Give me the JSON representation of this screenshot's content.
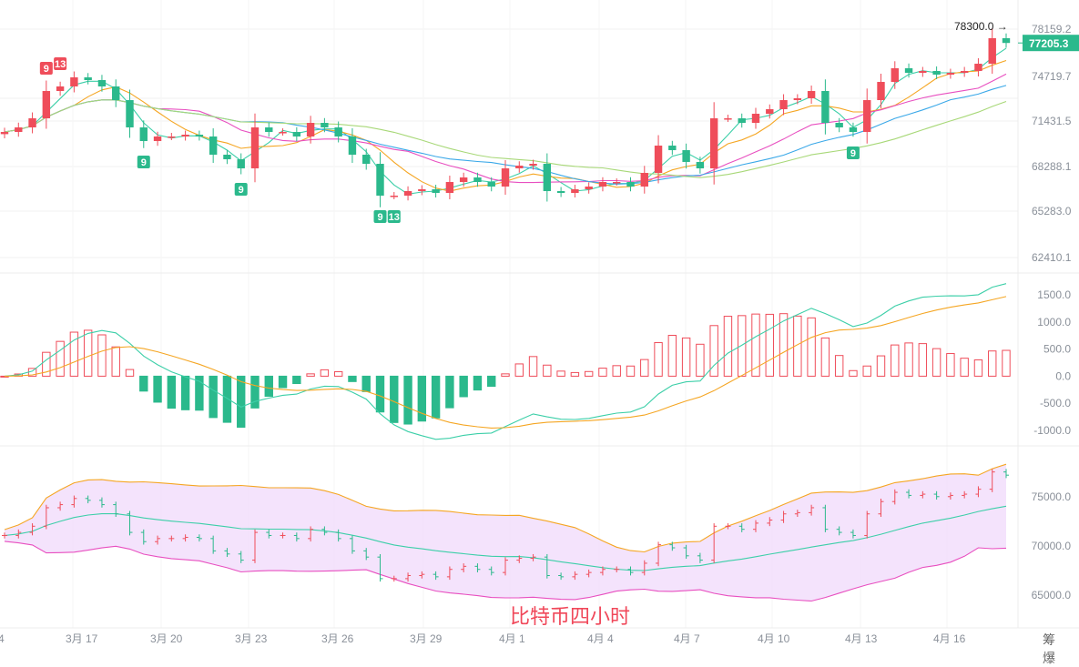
{
  "chart_data": {
    "type": "candlestick",
    "title": "",
    "watermark": "比特币四小时",
    "price_axis_ticks": [
      "78159.2",
      "74719.7",
      "71431.5",
      "68288.1",
      "65283.0",
      "62410.1"
    ],
    "price_axis_range": [
      62410.1,
      78159.2
    ],
    "last_price_label": "77205.3",
    "high_marker_label": "78300.0",
    "macd_axis_ticks": [
      "1500.0",
      "1000.0",
      "500.0",
      "0.0",
      "-500.0",
      "-1000.0"
    ],
    "macd_axis_range": [
      -1000,
      1500
    ],
    "boll_axis_ticks": [
      "75000.0",
      "70000.0",
      "65000.0"
    ],
    "boll_axis_range": [
      65000,
      75000
    ],
    "x_tick_labels": [
      "4",
      "3月 17",
      "3月 20",
      "3月 23",
      "3月 26",
      "3月 29",
      "4月 1",
      "4月 4",
      "4月 7",
      "4月 10",
      "4月 13",
      "4月 16"
    ],
    "closes": [
      71068,
      71382,
      72009,
      73892,
      74206,
      74833,
      74645,
      74206,
      73264,
      71382,
      70441,
      70755,
      70755,
      70880,
      70755,
      69500,
      69186,
      68558,
      71382,
      71068,
      71068,
      70755,
      71696,
      71382,
      70755,
      69500,
      68872,
      66676,
      66676,
      66990,
      67115,
      66864,
      67617,
      67931,
      67617,
      67303,
      68558,
      68747,
      68872,
      66990,
      66864,
      67115,
      67303,
      67617,
      67617,
      67303,
      68245,
      70127,
      69813,
      69000,
      68558,
      72009,
      72009,
      71696,
      72323,
      72637,
      73264,
      73390,
      73892,
      71696,
      71382,
      71068,
      73264,
      74519,
      75460,
      75146,
      75272,
      75021,
      75146,
      75272,
      75774,
      77532,
      77205
    ],
    "td_markers": [
      {
        "index": 3,
        "label": "9",
        "type": "top"
      },
      {
        "index": 4,
        "label": "13",
        "type": "top"
      },
      {
        "index": 10,
        "label": "9",
        "type": "bottom"
      },
      {
        "index": 17,
        "label": "9",
        "type": "bottom"
      },
      {
        "index": 27,
        "label": "9",
        "type": "bottom"
      },
      {
        "index": 28,
        "label": "13",
        "type": "bottom"
      },
      {
        "index": 61,
        "label": "9",
        "type": "bottom"
      }
    ],
    "colors": {
      "up": "#ef4d5a",
      "down": "#2bb98c",
      "ma1": "#3ccfa8",
      "ma2": "#f5a623",
      "ma3": "#e84fc0",
      "ma4": "#3aa8e8",
      "ma5": "#a8d878",
      "boll_fill": "#f1dcfb"
    }
  },
  "footer": {
    "corner_text": "筹 爆"
  }
}
